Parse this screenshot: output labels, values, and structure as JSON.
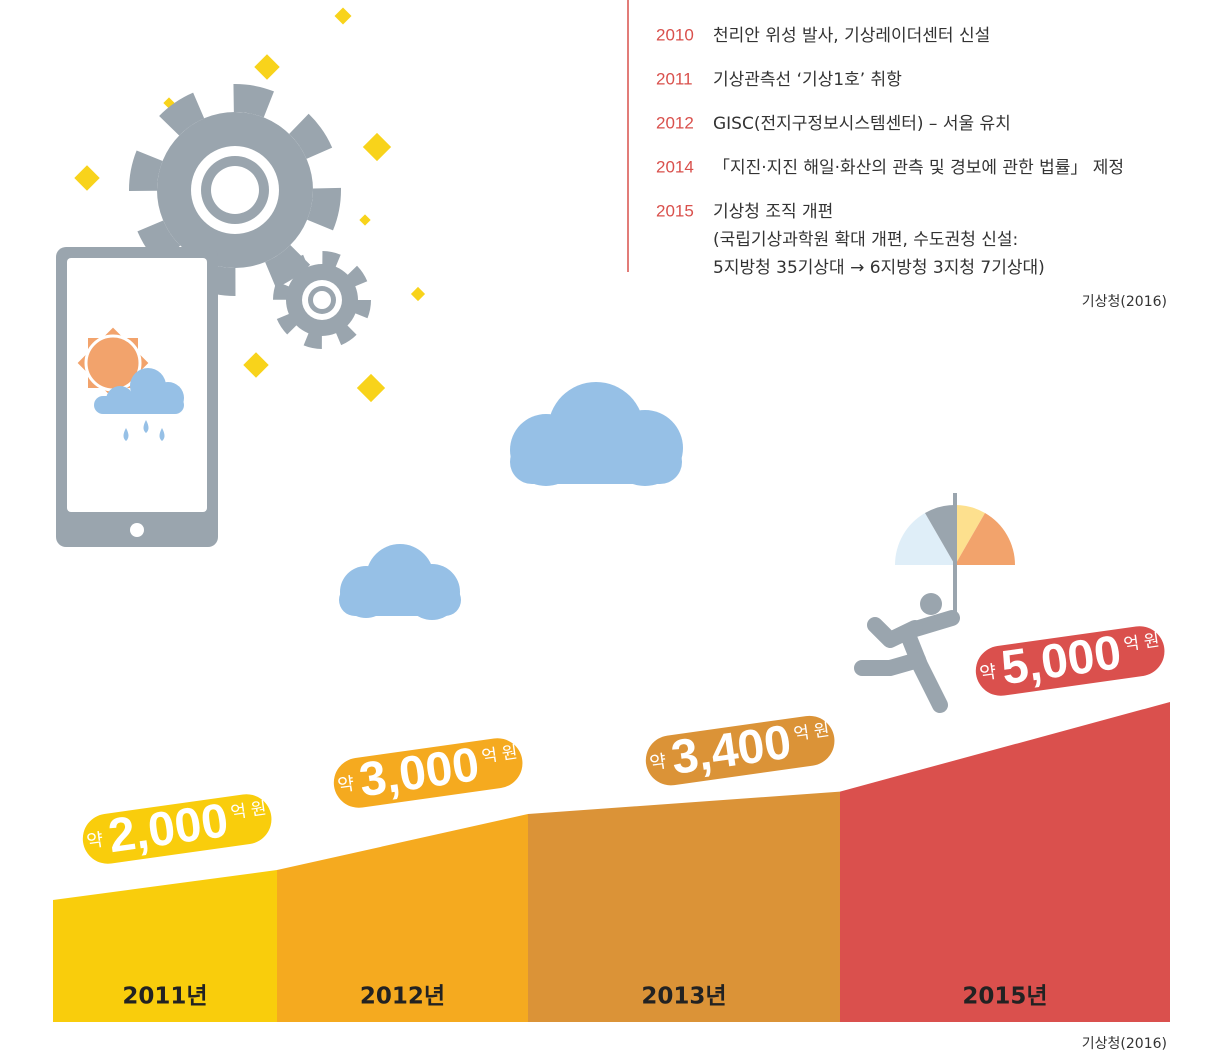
{
  "timeline": {
    "items": [
      {
        "year": "2010",
        "lines": [
          "천리안 위성 발사, 기상레이더센터 신설"
        ]
      },
      {
        "year": "2011",
        "lines": [
          "기상관측선 ‘기상1호’ 취항"
        ]
      },
      {
        "year": "2012",
        "lines": [
          "GISC(전지구정보시스템센터) – 서울 유치"
        ]
      },
      {
        "year": "2014",
        "lines": [
          "「지진·지진 해일·화산의 관측 및 경보에 관한 법률」 제정"
        ]
      },
      {
        "year": "2015",
        "lines": [
          "기상청 조직 개편",
          "(국립기상과학원 확대 개편, 수도권청 신설:",
          "5지방청 35기상대  →  6지방청 3지청 7기상대)"
        ]
      }
    ],
    "source": "기상청(2016)"
  },
  "chart_data": {
    "type": "step-area",
    "categories": [
      "2011년",
      "2012년",
      "2013년",
      "2015년"
    ],
    "values": [
      2000,
      3000,
      3400,
      5000
    ],
    "value_labels": [
      "2,000",
      "3,000",
      "3,400",
      "5,000"
    ],
    "prefix": "약",
    "unit": "억 원",
    "colors": [
      "#f9cd0c",
      "#f5aa1f",
      "#db9337",
      "#da504d"
    ],
    "source": "기상청(2016)"
  }
}
